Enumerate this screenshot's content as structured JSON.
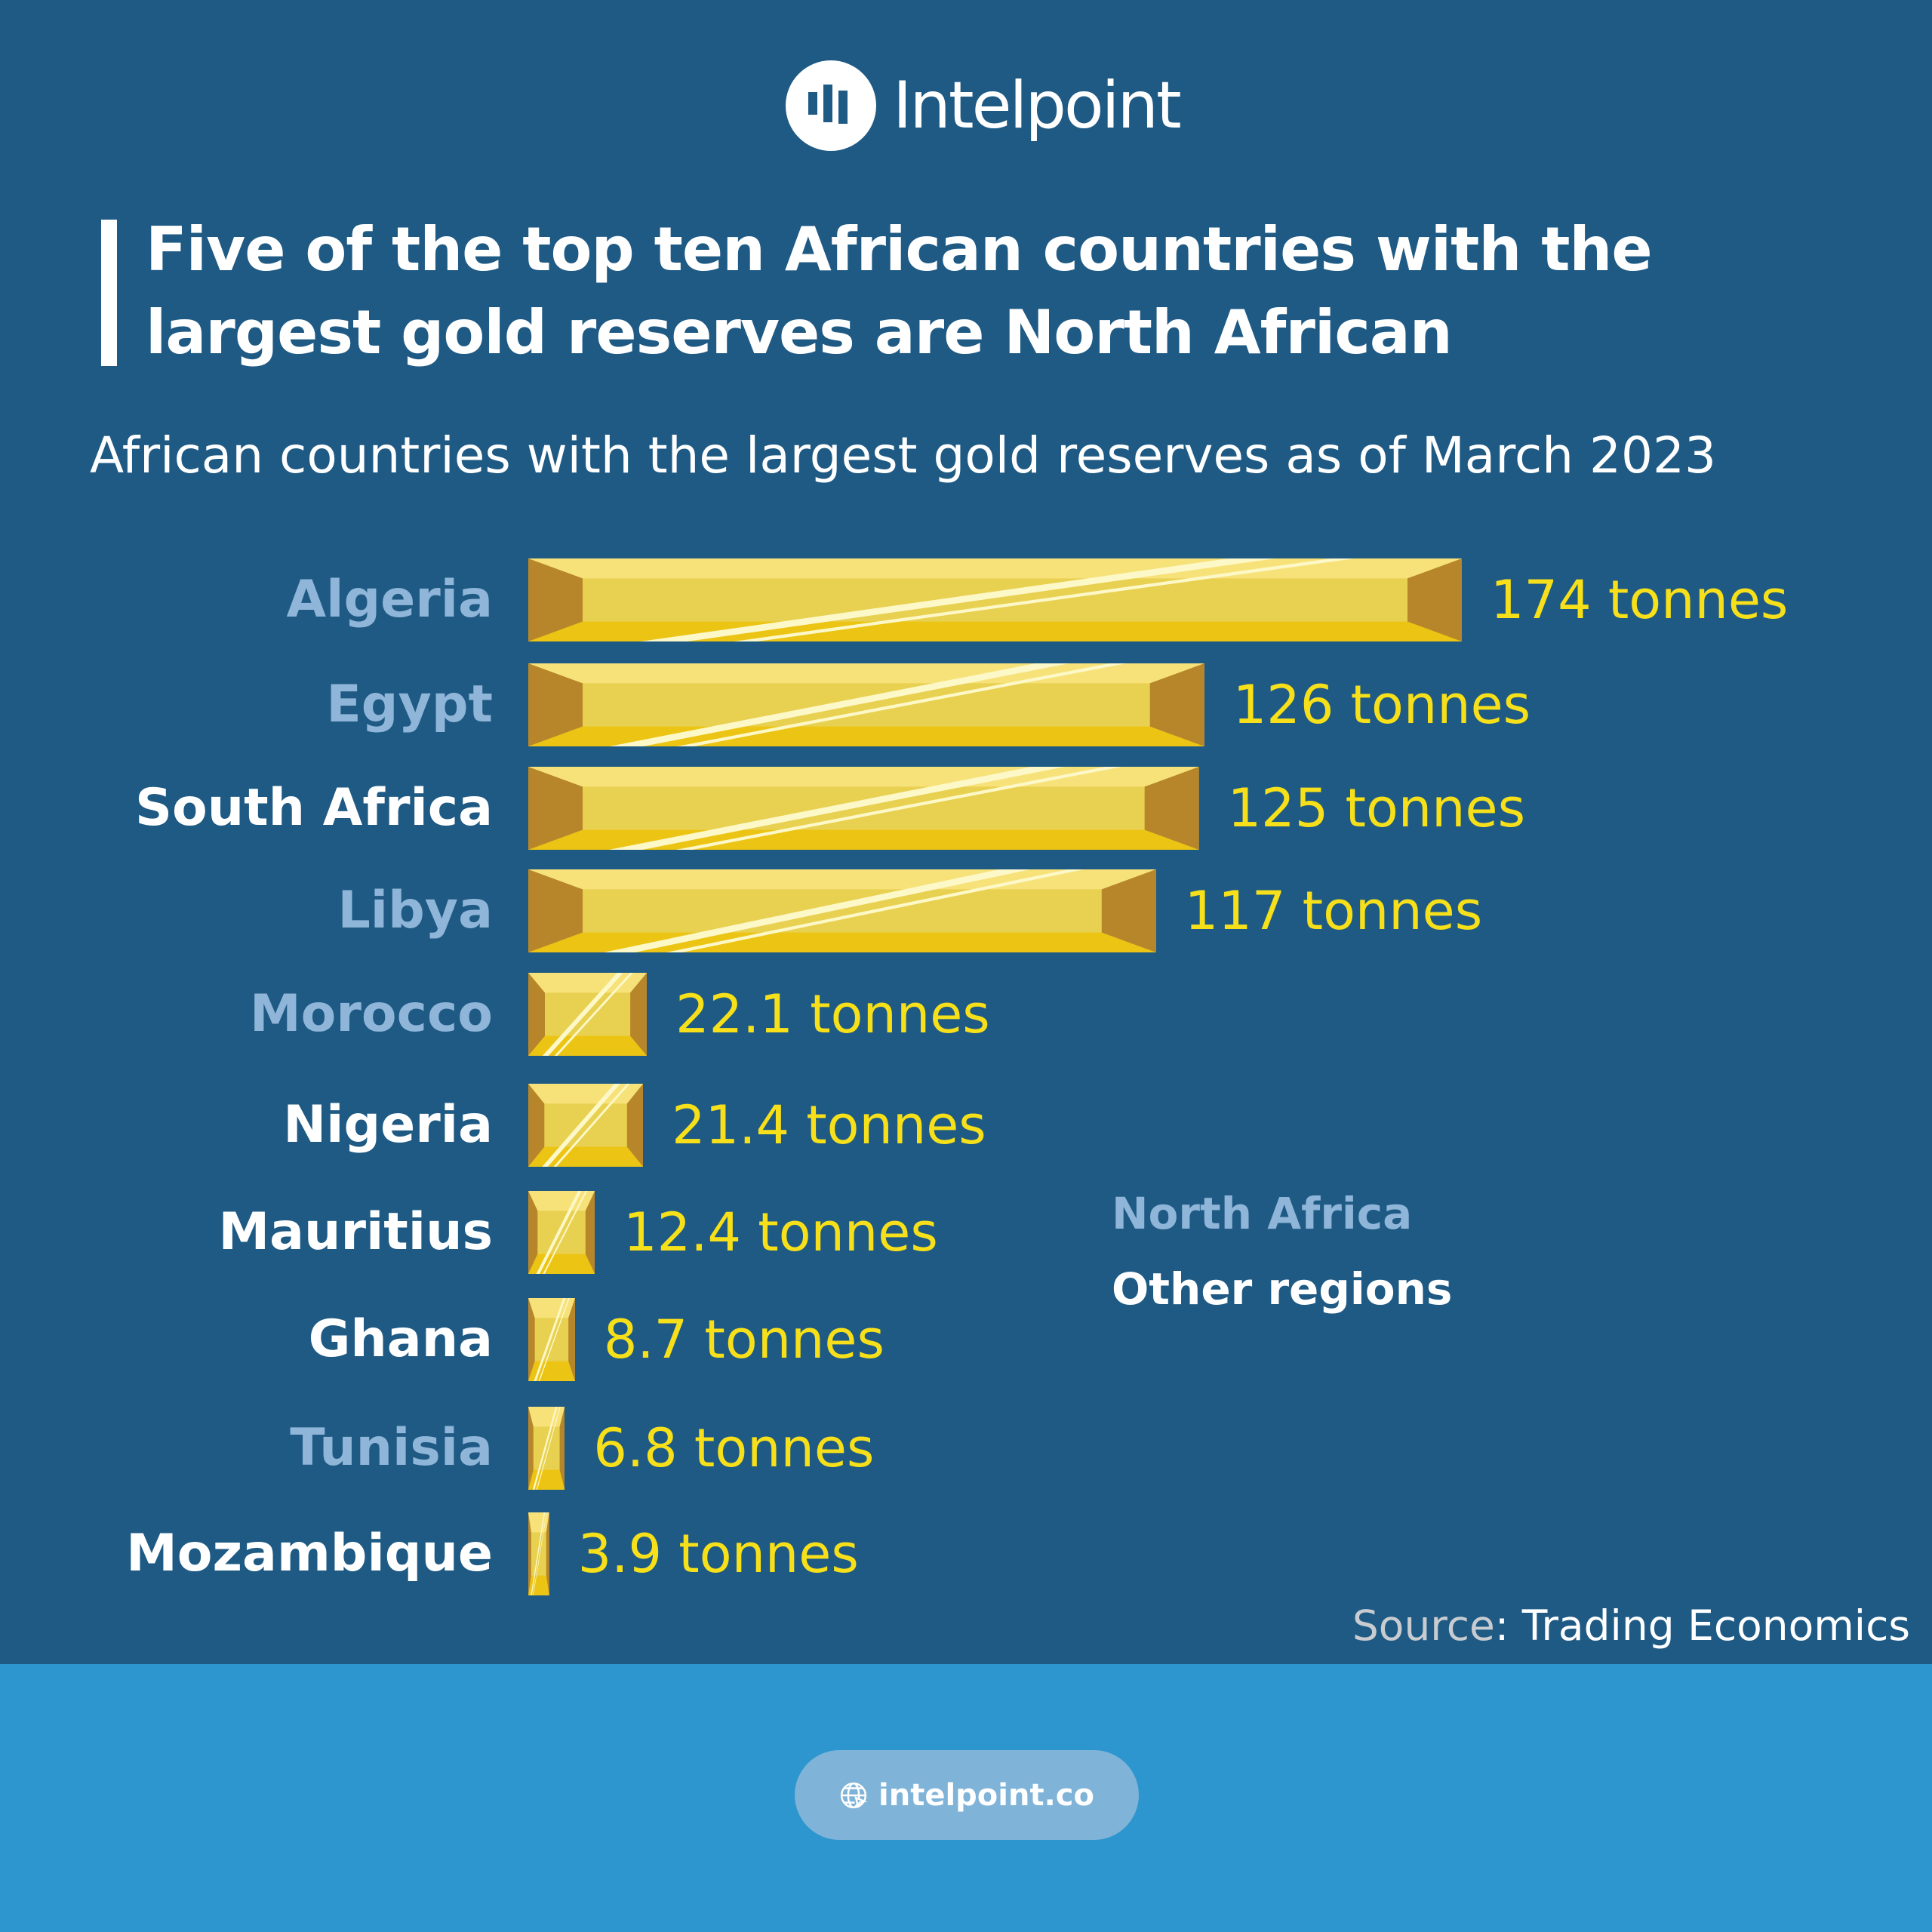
{
  "brand": {
    "name": "Intelpoint",
    "website": "intelpoint.co"
  },
  "title": "Five of the top ten African countries with the largest gold reserves are North African",
  "subtitle": "African countries with the largest gold reserves as of March 2023",
  "legend": {
    "north_africa": "North Africa",
    "other": "Other regions"
  },
  "source": {
    "label": "Source",
    "text": ": Trading Economics"
  },
  "colors": {
    "background": "#1e5a84",
    "north_africa": "#8fb5d8",
    "other": "#ffffff",
    "value": "#f7e01a",
    "gold": "#e8d050",
    "footer": "#2e96ce"
  },
  "chart_data": {
    "type": "bar",
    "orientation": "horizontal",
    "title": "African countries with the largest gold reserves as of March 2023",
    "unit": "tonnes",
    "categories": [
      "Algeria",
      "Egypt",
      "South Africa",
      "Libya",
      "Morocco",
      "Nigeria",
      "Mauritius",
      "Ghana",
      "Tunisia",
      "Mozambique"
    ],
    "values": [
      174,
      126,
      125,
      117,
      22.1,
      21.4,
      12.4,
      8.7,
      6.8,
      3.9
    ],
    "value_labels": [
      "174 tonnes",
      "126 tonnes",
      "125 tonnes",
      "117 tonnes",
      "22.1 tonnes",
      "21.4 tonnes",
      "12.4 tonnes",
      "8.7 tonnes",
      "6.8 tonnes",
      "3.9 tonnes"
    ],
    "regions": [
      "North Africa",
      "North Africa",
      "Other regions",
      "North Africa",
      "North Africa",
      "Other regions",
      "Other regions",
      "Other regions",
      "North Africa",
      "Other regions"
    ]
  }
}
